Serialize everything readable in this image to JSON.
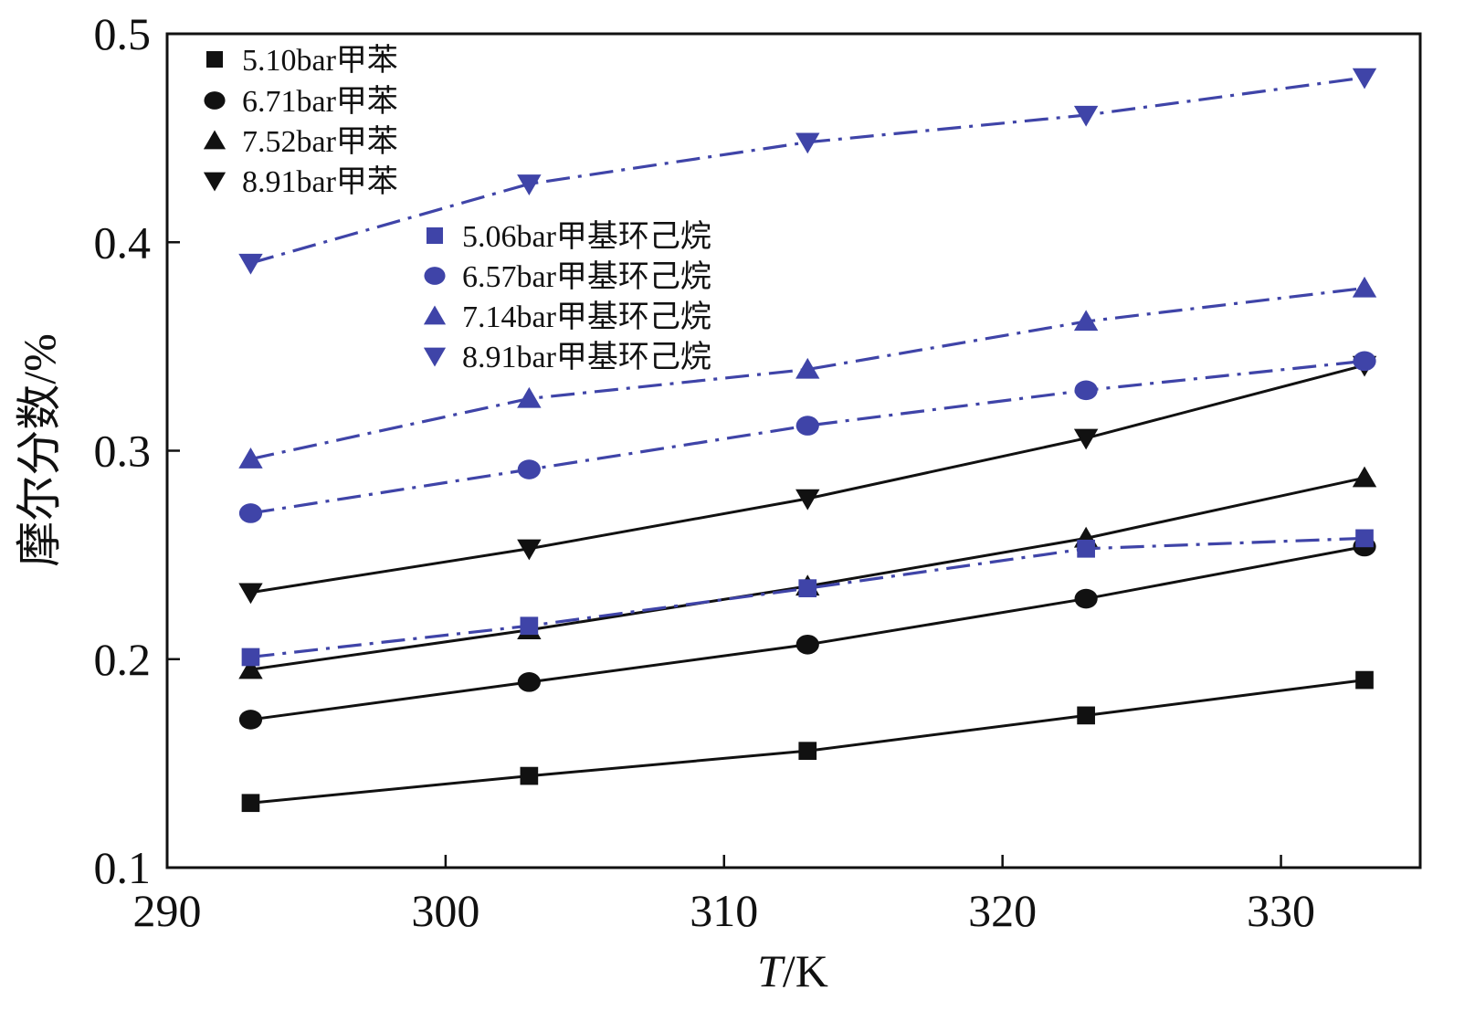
{
  "chart_data": {
    "type": "line",
    "title": "",
    "xlabel": "T/K",
    "xlabel_italic": "T",
    "xlabel_rest": "/K",
    "ylabel": "摩尔分数/%",
    "xlim": [
      290,
      335
    ],
    "ylim": [
      0.1,
      0.5
    ],
    "xticks": [
      290,
      300,
      310,
      320,
      330
    ],
    "yticks": [
      0.1,
      0.2,
      0.3,
      0.4,
      0.5
    ],
    "xtick_labels": [
      "290",
      "300",
      "310",
      "320",
      "330"
    ],
    "ytick_labels": [
      "0.1",
      "0.2",
      "0.3",
      "0.4",
      "0.5"
    ],
    "grid": false,
    "legend_position": "top-left",
    "x": [
      293,
      303,
      313,
      323,
      333
    ],
    "series": [
      {
        "name": "5.10bar甲苯",
        "marker": "square",
        "color": "#111111",
        "line": "solid",
        "values": [
          0.131,
          0.144,
          0.156,
          0.173,
          0.19
        ]
      },
      {
        "name": "6.71bar甲苯",
        "marker": "circle",
        "color": "#111111",
        "line": "solid",
        "values": [
          0.171,
          0.189,
          0.207,
          0.229,
          0.254
        ]
      },
      {
        "name": "7.52bar甲苯",
        "marker": "triangle-up",
        "color": "#111111",
        "line": "solid",
        "values": [
          0.195,
          0.214,
          0.235,
          0.258,
          0.287
        ]
      },
      {
        "name": "8.91bar甲苯",
        "marker": "triangle-down",
        "color": "#111111",
        "line": "solid",
        "values": [
          0.232,
          0.253,
          0.277,
          0.306,
          0.341
        ]
      },
      {
        "name": "5.06bar甲基环己烷",
        "marker": "square",
        "color": "#3f44a8",
        "line": "dashdot",
        "values": [
          0.201,
          0.216,
          0.234,
          0.253,
          0.258
        ]
      },
      {
        "name": "6.57bar甲基环己烷",
        "marker": "circle",
        "color": "#3f44a8",
        "line": "dashdot",
        "values": [
          0.27,
          0.291,
          0.312,
          0.329,
          0.343
        ]
      },
      {
        "name": "7.14bar甲基环己烷",
        "marker": "triangle-up",
        "color": "#3f44a8",
        "line": "dashdot",
        "values": [
          0.296,
          0.325,
          0.339,
          0.362,
          0.378
        ]
      },
      {
        "name": "8.91bar甲基环己烷",
        "marker": "triangle-down",
        "color": "#3f44a8",
        "line": "dashdot",
        "values": [
          0.39,
          0.428,
          0.448,
          0.461,
          0.479
        ]
      }
    ]
  }
}
